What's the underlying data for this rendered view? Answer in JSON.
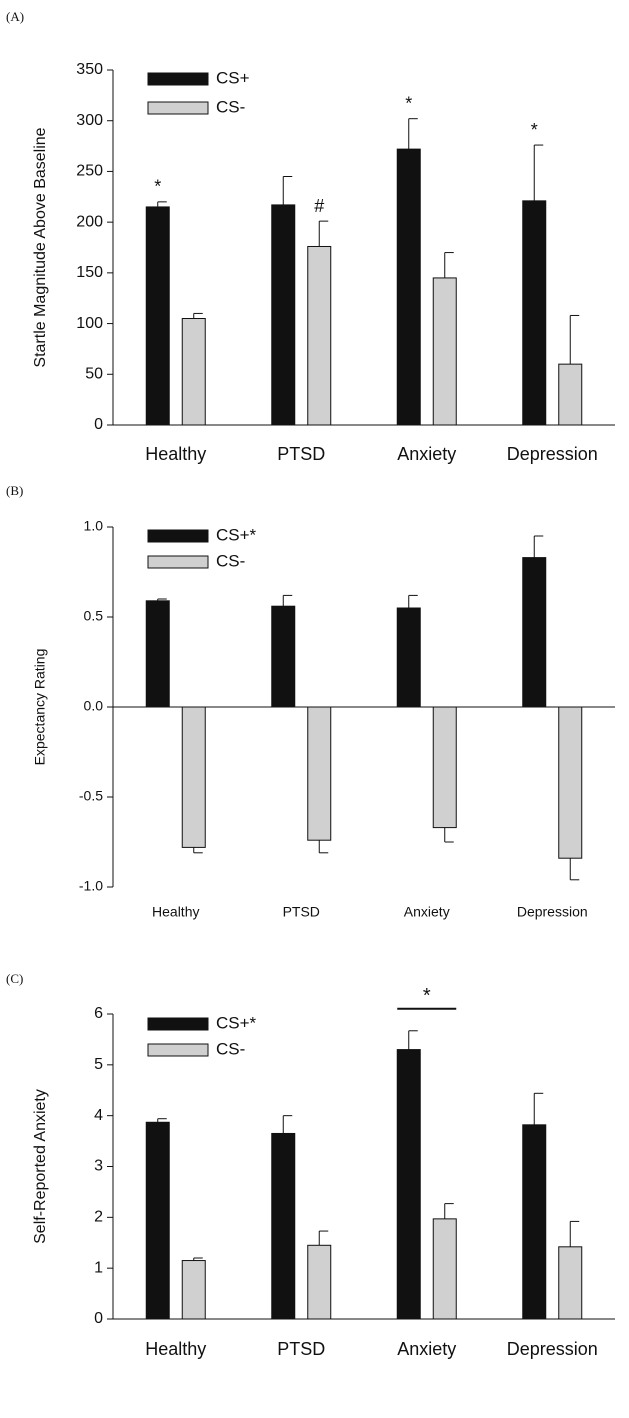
{
  "chart_data": [
    {
      "type": "bar",
      "label": "(A)",
      "y_label": "Startle Magnitude Above Baseline",
      "categories": [
        "Healthy",
        "PTSD",
        "Anxiety",
        "Depression"
      ],
      "series": [
        {
          "name": "CS+",
          "color": "#111111",
          "values": [
            215,
            217,
            272,
            221
          ],
          "errors": [
            5,
            28,
            30,
            55
          ]
        },
        {
          "name": "CS-",
          "color": "#d0d0d0",
          "values": [
            105,
            176,
            145,
            60
          ],
          "errors": [
            5,
            25,
            25,
            48
          ]
        }
      ],
      "ylim": [
        0,
        350
      ],
      "yticks": [
        0,
        50,
        100,
        150,
        200,
        250,
        300,
        350
      ],
      "annotations": [
        {
          "text": "*",
          "series": 0,
          "category": 0
        },
        {
          "text": "#",
          "series": 1,
          "category": 1
        },
        {
          "text": "*",
          "series": 0,
          "category": 2
        },
        {
          "text": "*",
          "series": 0,
          "category": 3
        }
      ]
    },
    {
      "type": "bar",
      "label": "(B)",
      "y_label": "Expectancy Rating",
      "categories": [
        "Healthy",
        "PTSD",
        "Anxiety",
        "Depression"
      ],
      "series": [
        {
          "name": "CS+*",
          "color": "#111111",
          "values": [
            0.59,
            0.56,
            0.55,
            0.83
          ],
          "errors": [
            0.01,
            0.06,
            0.07,
            0.12
          ]
        },
        {
          "name": "CS-",
          "color": "#d0d0d0",
          "values": [
            -0.78,
            -0.74,
            -0.67,
            -0.84
          ],
          "errors": [
            0.03,
            0.07,
            0.08,
            0.12
          ]
        }
      ],
      "ylim": [
        -1,
        1
      ],
      "yticks": [
        {
          "value": -1,
          "label": "-1.0"
        },
        -0.5,
        {
          "value": 0,
          "label": "0.0"
        },
        0.5,
        {
          "value": 1,
          "label": "1.0"
        }
      ],
      "annotations": []
    },
    {
      "type": "bar",
      "label": "(C)",
      "y_label": "Self-Reported Anxiety",
      "categories": [
        "Healthy",
        "PTSD",
        "Anxiety",
        "Depression"
      ],
      "series": [
        {
          "name": "CS+*",
          "color": "#111111",
          "values": [
            3.87,
            3.65,
            5.3,
            3.82
          ],
          "errors": [
            0.07,
            0.35,
            0.37,
            0.62
          ]
        },
        {
          "name": "CS-",
          "color": "#d0d0d0",
          "values": [
            1.15,
            1.45,
            1.97,
            1.42
          ],
          "errors": [
            0.05,
            0.28,
            0.3,
            0.5
          ]
        }
      ],
      "ylim": [
        0,
        6
      ],
      "yticks": [
        0,
        1,
        2,
        3,
        4,
        5,
        6
      ],
      "annotations": [
        {
          "text": "*",
          "series": [
            0,
            1
          ],
          "category": 2
        }
      ]
    }
  ]
}
